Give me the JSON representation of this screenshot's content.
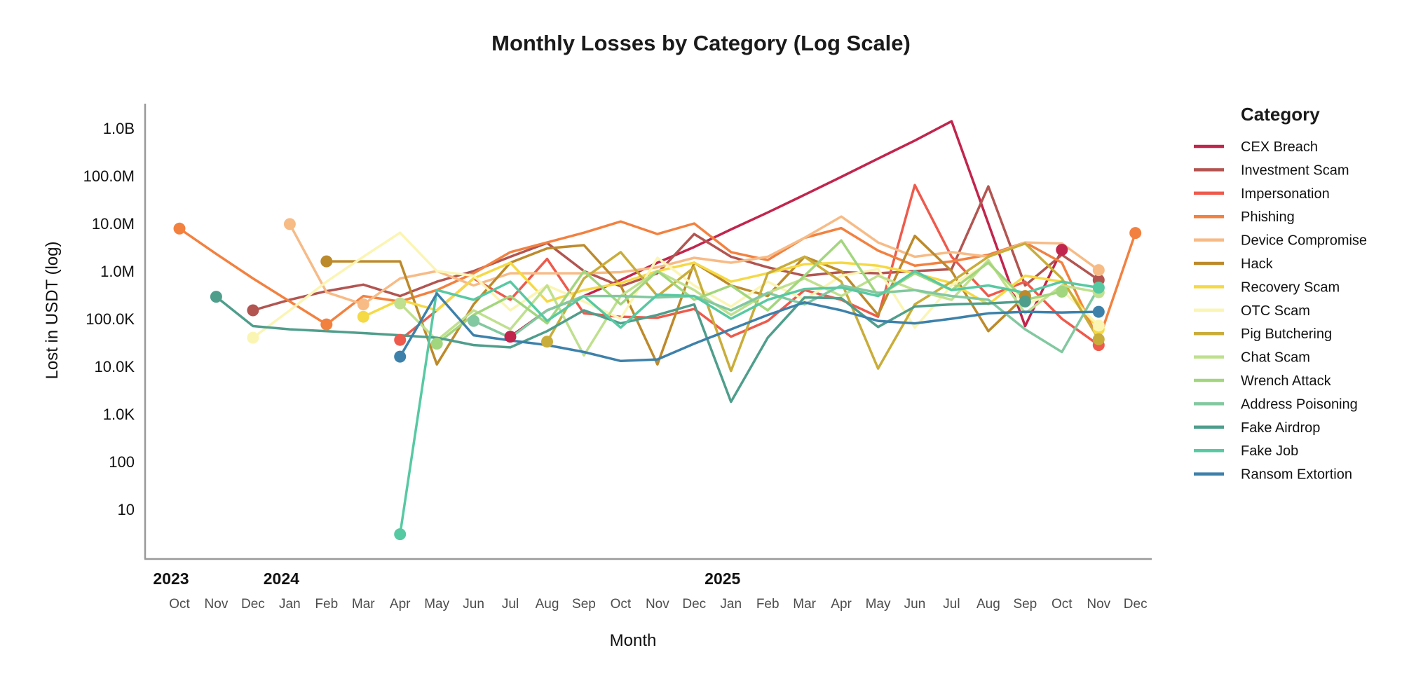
{
  "title": "Monthly Losses by Category (Log Scale)",
  "y_axis": {
    "label": "Lost in USDT (log)",
    "ticks": [
      {
        "label": "1.0B",
        "value": 1000000000
      },
      {
        "label": "100.0M",
        "value": 100000000
      },
      {
        "label": "10.0M",
        "value": 10000000
      },
      {
        "label": "1.0M",
        "value": 1000000
      },
      {
        "label": "100.0K",
        "value": 100000
      },
      {
        "label": "10.0K",
        "value": 10000
      },
      {
        "label": "1.0K",
        "value": 1000
      },
      {
        "label": "100",
        "value": 100
      },
      {
        "label": "10",
        "value": 10
      }
    ]
  },
  "x_axis": {
    "label": "Month",
    "months": [
      "Oct",
      "Nov",
      "Dec",
      "Jan",
      "Feb",
      "Mar",
      "Apr",
      "May",
      "Jun",
      "Jul",
      "Aug",
      "Sep",
      "Oct",
      "Nov",
      "Dec",
      "Jan",
      "Feb",
      "Mar",
      "Apr",
      "May",
      "Jun",
      "Jul",
      "Aug",
      "Sep",
      "Oct",
      "Nov",
      "Dec"
    ],
    "years": [
      {
        "label": "2023",
        "index": 0
      },
      {
        "label": "2024",
        "index": 3
      },
      {
        "label": "2025",
        "index": 15
      }
    ]
  },
  "legend": {
    "title": "Category"
  },
  "chart_data": {
    "type": "line",
    "x_unit": "month",
    "x_start": "2023-10",
    "x_end": "2025-12",
    "y_scale": "log10",
    "ylim": [
      3,
      1500000000
    ],
    "grid": false,
    "legend_position": "right",
    "series": [
      {
        "name": "CEX Breach",
        "legend_label": "CEX Breach",
        "color": "#c1254d",
        "values": [
          null,
          null,
          null,
          null,
          null,
          null,
          null,
          null,
          null,
          42000,
          150000,
          300000,
          650000,
          1500000,
          3200000,
          7500000,
          17000000,
          40000000,
          95000000,
          230000000,
          550000000,
          1400000000,
          10000000,
          70000,
          2800000,
          null,
          null
        ],
        "dot_indices": [
          9,
          24
        ]
      },
      {
        "name": "Investment Scam",
        "legend_label": "Investment Scam",
        "color": "#b25551",
        "values": [
          null,
          null,
          150000,
          250000,
          380000,
          520000,
          300000,
          600000,
          1000000,
          2000000,
          3900000,
          1000000,
          480000,
          900000,
          6000000,
          2000000,
          1200000,
          800000,
          950000,
          900000,
          1000000,
          1100000,
          60000000,
          500000,
          2200000,
          650000,
          null
        ],
        "dot_indices": [
          2,
          25
        ]
      },
      {
        "name": "Impersonation",
        "legend_label": "Impersonation",
        "color": "#ee5a4c",
        "values": [
          null,
          null,
          null,
          null,
          null,
          null,
          36000,
          150000,
          700000,
          250000,
          1800000,
          130000,
          110000,
          105000,
          160000,
          42000,
          90000,
          400000,
          250000,
          110000,
          64000000,
          2000000,
          300000,
          600000,
          100000,
          28000,
          null
        ],
        "dot_indices": [
          6,
          25
        ]
      },
      {
        "name": "Phishing",
        "legend_label": "Phishing",
        "color": "#f28140",
        "values": [
          7800000,
          2300000,
          700000,
          230000,
          76000,
          300000,
          230000,
          400000,
          900000,
          2500000,
          4000000,
          6400000,
          11000000,
          6000000,
          10000000,
          2500000,
          1700000,
          5000000,
          8000000,
          2700000,
          1300000,
          1600000,
          2200000,
          4000000,
          1500000,
          35000,
          6300000
        ],
        "dot_indices": [
          0,
          4,
          26
        ]
      },
      {
        "name": "Device Compromise",
        "legend_label": "Device Compromise",
        "color": "#f7bb86",
        "values": [
          null,
          null,
          null,
          9700000,
          360000,
          200000,
          700000,
          1000000,
          500000,
          900000,
          900000,
          900000,
          950000,
          1200000,
          1900000,
          1500000,
          2000000,
          5000000,
          14000000,
          4000000,
          2000000,
          2500000,
          2000000,
          4000000,
          3800000,
          1050000,
          null
        ],
        "dot_indices": [
          3,
          5,
          25
        ]
      },
      {
        "name": "Hack",
        "legend_label": "Hack",
        "color": "#bd8a2b",
        "values": [
          null,
          null,
          null,
          null,
          1600000,
          1600000,
          1600000,
          11000,
          200000,
          1500000,
          3000000,
          3500000,
          500000,
          11000,
          1500000,
          500000,
          300000,
          2000000,
          1000000,
          120000,
          5500000,
          1000000,
          55000,
          300000,
          null,
          null,
          null
        ],
        "dot_indices": [
          4,
          23
        ]
      },
      {
        "name": "Recovery Scam",
        "legend_label": "Recovery Scam",
        "color": "#f5d945",
        "values": [
          null,
          null,
          null,
          null,
          null,
          110000,
          250000,
          150000,
          700000,
          1500000,
          230000,
          400000,
          560000,
          1000000,
          1500000,
          600000,
          900000,
          1400000,
          1500000,
          1300000,
          900000,
          560000,
          200000,
          800000,
          600000,
          60000,
          null
        ],
        "dot_indices": [
          5,
          25
        ]
      },
      {
        "name": "OTC Scam",
        "legend_label": "OTC Scam",
        "color": "#fbf5b4",
        "values": [
          null,
          null,
          40000,
          150000,
          600000,
          2000000,
          6400000,
          1000000,
          800000,
          150000,
          500000,
          230000,
          100000,
          1900000,
          500000,
          180000,
          600000,
          250000,
          800000,
          1100000,
          65000,
          500000,
          1500000,
          200000,
          400000,
          72000,
          null
        ],
        "dot_indices": [
          2,
          25
        ]
      },
      {
        "name": "Pig Butchering",
        "legend_label": " Pig Butchering",
        "color": "#c9ad3a",
        "values": [
          null,
          null,
          null,
          null,
          null,
          null,
          null,
          null,
          null,
          null,
          33000,
          700000,
          2500000,
          300000,
          1200000,
          8000,
          900000,
          2000000,
          600000,
          9000,
          200000,
          600000,
          2000000,
          3800000,
          700000,
          37000,
          null
        ],
        "dot_indices": [
          10,
          25
        ]
      },
      {
        "name": "Chat Scam",
        "legend_label": "Chat Scam",
        "color": "#bfe08e",
        "values": [
          null,
          null,
          null,
          null,
          null,
          null,
          210000,
          35000,
          150000,
          60000,
          500000,
          17000,
          300000,
          1000000,
          400000,
          120000,
          350000,
          700000,
          300000,
          800000,
          400000,
          250000,
          1700000,
          130000,
          500000,
          360000,
          null
        ],
        "dot_indices": [
          6,
          25
        ]
      },
      {
        "name": "Wrench Attack",
        "legend_label": "Wrench Attack",
        "color": "#a2d67e",
        "values": [
          null,
          null,
          null,
          null,
          null,
          null,
          null,
          30000,
          120000,
          300000,
          80000,
          1000000,
          200000,
          1000000,
          250000,
          500000,
          150000,
          800000,
          4400000,
          300000,
          900000,
          400000,
          1500000,
          250000,
          370000,
          null,
          null
        ],
        "dot_indices": [
          7,
          24
        ]
      },
      {
        "name": "Address Poisoning",
        "legend_label": "Address Poisoning",
        "color": "#82c8a0",
        "values": [
          null,
          null,
          null,
          null,
          null,
          null,
          null,
          null,
          90000,
          40000,
          150000,
          300000,
          300000,
          280000,
          300000,
          150000,
          350000,
          200000,
          500000,
          350000,
          400000,
          300000,
          250000,
          60000,
          20000,
          450000,
          null
        ],
        "dot_indices": [
          8,
          25
        ]
      },
      {
        "name": "Fake Airdrop",
        "legend_label": "Fake Airdrop",
        "color": "#4f9e8c",
        "values": [
          null,
          290000,
          70000,
          60000,
          55000,
          50000,
          45000,
          40000,
          28000,
          25000,
          55000,
          150000,
          80000,
          120000,
          200000,
          1800,
          40000,
          280000,
          270000,
          67000,
          180000,
          200000,
          210000,
          230000,
          null,
          null,
          null
        ],
        "dot_indices": [
          1,
          23
        ]
      },
      {
        "name": "Fake Job",
        "legend_label": "Fake Job",
        "color": "#57c9a2",
        "values": [
          null,
          null,
          null,
          null,
          null,
          null,
          3,
          400000,
          250000,
          600000,
          90000,
          300000,
          65000,
          320000,
          300000,
          100000,
          250000,
          420000,
          450000,
          300000,
          1000000,
          400000,
          500000,
          350000,
          600000,
          450000,
          null
        ],
        "dot_indices": [
          6,
          25
        ]
      },
      {
        "name": "Ransom Extortion",
        "legend_label": "Ransom Extortion",
        "color": "#3d81aa",
        "values": [
          null,
          null,
          null,
          null,
          null,
          null,
          16000,
          340000,
          45000,
          35000,
          28000,
          20000,
          13000,
          14000,
          30000,
          60000,
          120000,
          220000,
          150000,
          90000,
          80000,
          100000,
          130000,
          140000,
          135000,
          140000,
          null
        ],
        "dot_indices": [
          6,
          25
        ]
      }
    ]
  }
}
